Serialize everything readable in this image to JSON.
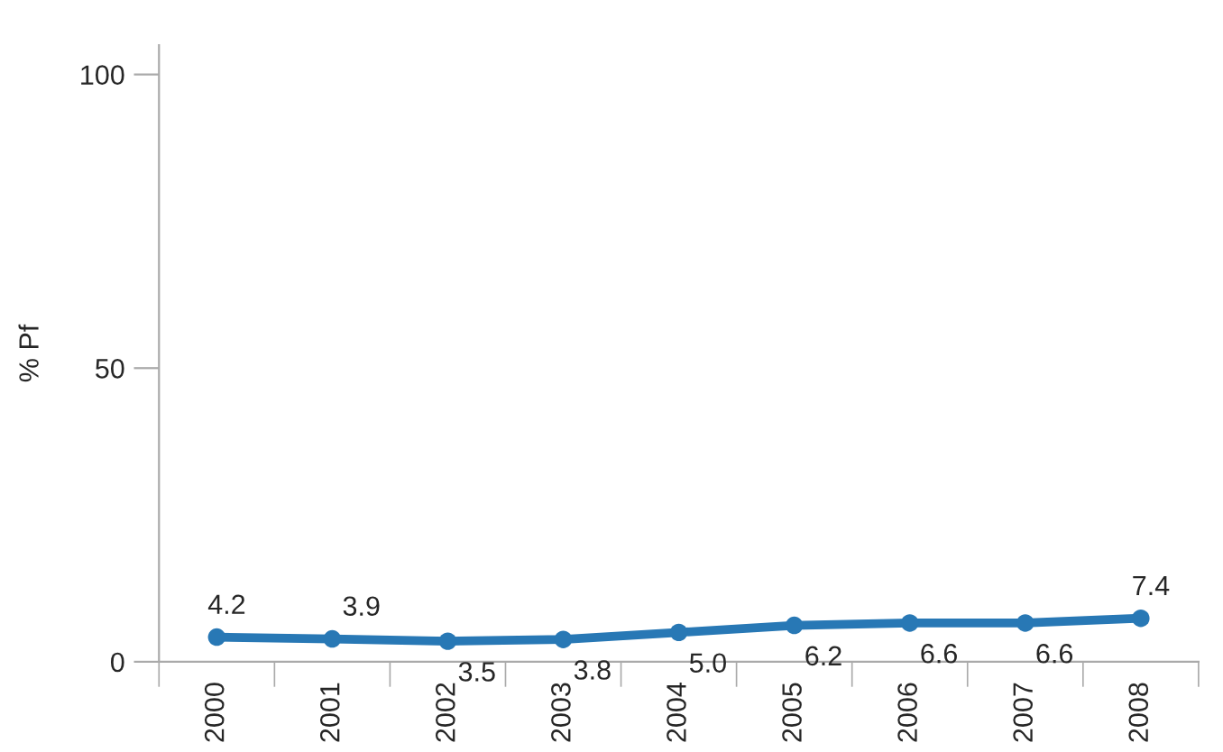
{
  "chart_data": {
    "type": "line",
    "ylabel": "% Pf",
    "categories": [
      "2000",
      "2001",
      "2002",
      "2003",
      "2004",
      "2005",
      "2006",
      "2007",
      "2008"
    ],
    "series": [
      {
        "color": "#2878b5",
        "values": [
          4.2,
          3.9,
          3.5,
          3.8,
          5.0,
          6.2,
          6.6,
          6.6,
          7.4
        ],
        "value_labels": [
          "4.2",
          "3.9",
          "3.5",
          "3.8",
          "5.0",
          "6.2",
          "6.6",
          "6.6",
          "7.4"
        ]
      }
    ],
    "ylim": [
      0,
      105
    ],
    "yticks": [
      0,
      50,
      100
    ],
    "marker": "circle"
  }
}
